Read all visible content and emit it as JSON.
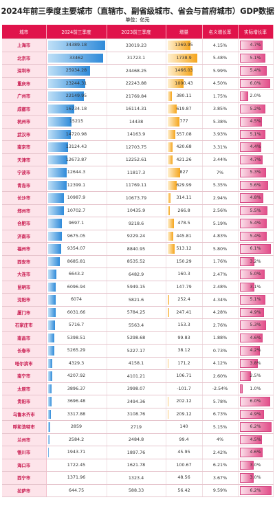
{
  "title": "2024年前三季度主要城市（直辖市、副省级城市、省会与首府城市）GDP数据",
  "unit": "单位：亿元",
  "colors": {
    "header": "#e0134b",
    "city_bg": "#fde4ea",
    "city_text": "#c8174d",
    "gdp_bar": "#2f8ad9",
    "increase_bar": "#f5a51d",
    "decrease_bar": "#e0303a",
    "growth_bar": "#e24f8a"
  },
  "chart_data": {
    "type": "table",
    "columns": [
      "城市",
      "2024前三季度",
      "2023前三季度",
      "增量",
      "名义增长率",
      "实际增长率"
    ],
    "rows": [
      [
        "上海市",
        "34389.18",
        "33019.23",
        "1369.95",
        "4.15%",
        "4.7%"
      ],
      [
        "北京市",
        "33462",
        "31723.1",
        "1738.9",
        "5.48%",
        "5.1%"
      ],
      [
        "深圳市",
        "25934.28",
        "24468.25",
        "1466.03",
        "5.99%",
        "5.4%"
      ],
      [
        "重庆市",
        "23244.31",
        "22243.88",
        "1000.43",
        "4.50%",
        "6.0%"
      ],
      [
        "广州市",
        "22149.95",
        "21769.84",
        "380.11",
        "1.75%",
        "2.0%"
      ],
      [
        "成都市",
        "16734.18",
        "16114.31",
        "619.87",
        "3.85%",
        "5.2%"
      ],
      [
        "杭州市",
        "15215",
        "14438",
        "777",
        "5.38%",
        "4.5%"
      ],
      [
        "武汉市",
        "14720.98",
        "14163.9",
        "557.08",
        "3.93%",
        "5.1%"
      ],
      [
        "南京市",
        "13124.43",
        "12703.75",
        "420.68",
        "3.31%",
        "4.4%"
      ],
      [
        "天津市",
        "12673.87",
        "12252.61",
        "421.26",
        "3.44%",
        "4.7%"
      ],
      [
        "宁波市",
        "12644.3",
        "11817.3",
        "827",
        "7%",
        "5.3%"
      ],
      [
        "青岛市",
        "12399.1",
        "11769.11",
        "629.99",
        "5.35%",
        "5.6%"
      ],
      [
        "长沙市",
        "10987.9",
        "10673.79",
        "314.11",
        "2.94%",
        "4.8%"
      ],
      [
        "郑州市",
        "10702.7",
        "10435.9",
        "266.8",
        "2.56%",
        "5.5%"
      ],
      [
        "合肥市",
        "9697.1",
        "9218.6",
        "478.5",
        "5.19%",
        "5.4%"
      ],
      [
        "济南市",
        "9675.05",
        "9229.24",
        "445.81",
        "4.83%",
        "5.4%"
      ],
      [
        "福州市",
        "9354.07",
        "8840.95",
        "513.12",
        "5.80%",
        "6.1%"
      ],
      [
        "西安市",
        "8685.81",
        "8535.52",
        "150.29",
        "1.76%",
        "3.2%"
      ],
      [
        "大连市",
        "6643.2",
        "6482.9",
        "160.3",
        "2.47%",
        "5.0%"
      ],
      [
        "昆明市",
        "6096.94",
        "5949.15",
        "147.79",
        "2.48%",
        "3.1%"
      ],
      [
        "沈阳市",
        "6074",
        "5821.6",
        "252.4",
        "4.34%",
        "5.1%"
      ],
      [
        "厦门市",
        "6031.66",
        "5784.25",
        "247.41",
        "4.28%",
        "4.9%"
      ],
      [
        "石家庄市",
        "5716.7",
        "5563.4",
        "153.3",
        "2.76%",
        "5.3%"
      ],
      [
        "南昌市",
        "5398.51",
        "5298.68",
        "99.83",
        "1.88%",
        "4.6%"
      ],
      [
        "长春市",
        "5265.29",
        "5227.17",
        "38.12",
        "0.73%",
        "4.2%"
      ],
      [
        "哈尔滨市",
        "4329.3",
        "4158.1",
        "171.2",
        "4.12%",
        "3.8%"
      ],
      [
        "南宁市",
        "4207.92",
        "4101.21",
        "106.71",
        "2.60%",
        "2.5%"
      ],
      [
        "太原市",
        "3896.37",
        "3998.07",
        "-101.7",
        "-2.54%",
        "1.0%"
      ],
      [
        "贵阳市",
        "3696.48",
        "3494.36",
        "202.12",
        "5.78%",
        "6.0%"
      ],
      [
        "乌鲁木齐市",
        "3317.88",
        "3108.76",
        "209.12",
        "6.73%",
        "4.9%"
      ],
      [
        "呼和浩特市",
        "2859",
        "2719",
        "140",
        "5.15%",
        "6.2%"
      ],
      [
        "兰州市",
        "2584.2",
        "2484.8",
        "99.4",
        "4%",
        "4.5%"
      ],
      [
        "银川市",
        "1943.71",
        "1897.76",
        "45.95",
        "2.42%",
        "4.6%"
      ],
      [
        "海口市",
        "1722.45",
        "1621.78",
        "100.67",
        "6.21%",
        "3.0%"
      ],
      [
        "西宁市",
        "1371.96",
        "1323.4",
        "48.56",
        "3.67%",
        "3.0%"
      ],
      [
        "拉萨市",
        "644.75",
        "588.33",
        "56.42",
        "9.59%",
        "6.2%"
      ]
    ]
  }
}
